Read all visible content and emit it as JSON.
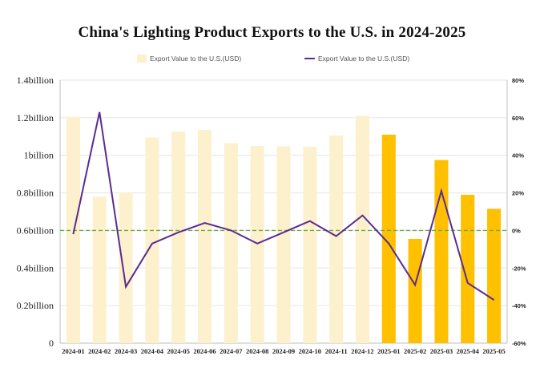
{
  "chart_data": {
    "type": "bar",
    "title": "China's Lighting Product Exports to the U.S. in 2024-2025",
    "categories": [
      "2024-01",
      "2024-02",
      "2024-03",
      "2024-04",
      "2024-05",
      "2024-06",
      "2024-07",
      "2024-08",
      "2024-09",
      "2024-10",
      "2024-11",
      "2024-12",
      "2025-01",
      "2025-02",
      "2025-03",
      "2025-04",
      "2025-05"
    ],
    "series": [
      {
        "name": "Export Value to the U.S.(USD)",
        "kind": "bar",
        "axis": "left",
        "values": [
          1.205,
          0.78,
          0.8,
          1.095,
          1.125,
          1.135,
          1.065,
          1.05,
          1.048,
          1.045,
          1.105,
          1.21,
          1.11,
          0.555,
          0.975,
          0.79,
          0.715
        ],
        "colors": [
          "#fdf0cc",
          "#fdf0cc",
          "#fdf0cc",
          "#fdf0cc",
          "#fdf0cc",
          "#fdf0cc",
          "#fdf0cc",
          "#fdf0cc",
          "#fdf0cc",
          "#fdf0cc",
          "#fdf0cc",
          "#fdf0cc",
          "#ffc000",
          "#ffc000",
          "#ffc000",
          "#ffc000",
          "#ffc000"
        ]
      },
      {
        "name": "Export Value to the U.S.(USD)",
        "kind": "line",
        "axis": "right",
        "color": "#5b2c91",
        "values": [
          -2,
          63,
          -30,
          -7,
          -1,
          4,
          0,
          -7,
          -1,
          5,
          -3,
          8,
          -7,
          -29,
          21,
          -28,
          -37
        ]
      }
    ],
    "left_axis": {
      "ylim": [
        0,
        1.4
      ],
      "ticks": [
        0,
        0.2,
        0.4,
        0.6,
        0.8,
        1.0,
        1.2,
        1.4
      ],
      "tick_labels": [
        "0",
        "0.2billion",
        "0.4billion",
        "0.6billion",
        "0.8billion",
        "1billion",
        "1.2billion",
        "1.4billion"
      ]
    },
    "right_axis": {
      "ylim": [
        -60,
        80
      ],
      "ticks": [
        -60,
        -40,
        -20,
        0,
        20,
        40,
        60,
        80
      ],
      "tick_labels": [
        "-60%",
        "-40%",
        "-20%",
        "0%",
        "20%",
        "40%",
        "60%",
        "80%"
      ]
    },
    "reference_line": {
      "axis": "right",
      "value": 0,
      "style": "dashed",
      "color": "#70ad47"
    },
    "legend": {
      "placement": "top"
    },
    "grid": true,
    "colors": {
      "bar_2024": "#fdf0cc",
      "bar_2025": "#ffc000",
      "line": "#5b2c91",
      "zero_line": "#70ad47",
      "legend_bar": "#fdf0cc"
    }
  }
}
